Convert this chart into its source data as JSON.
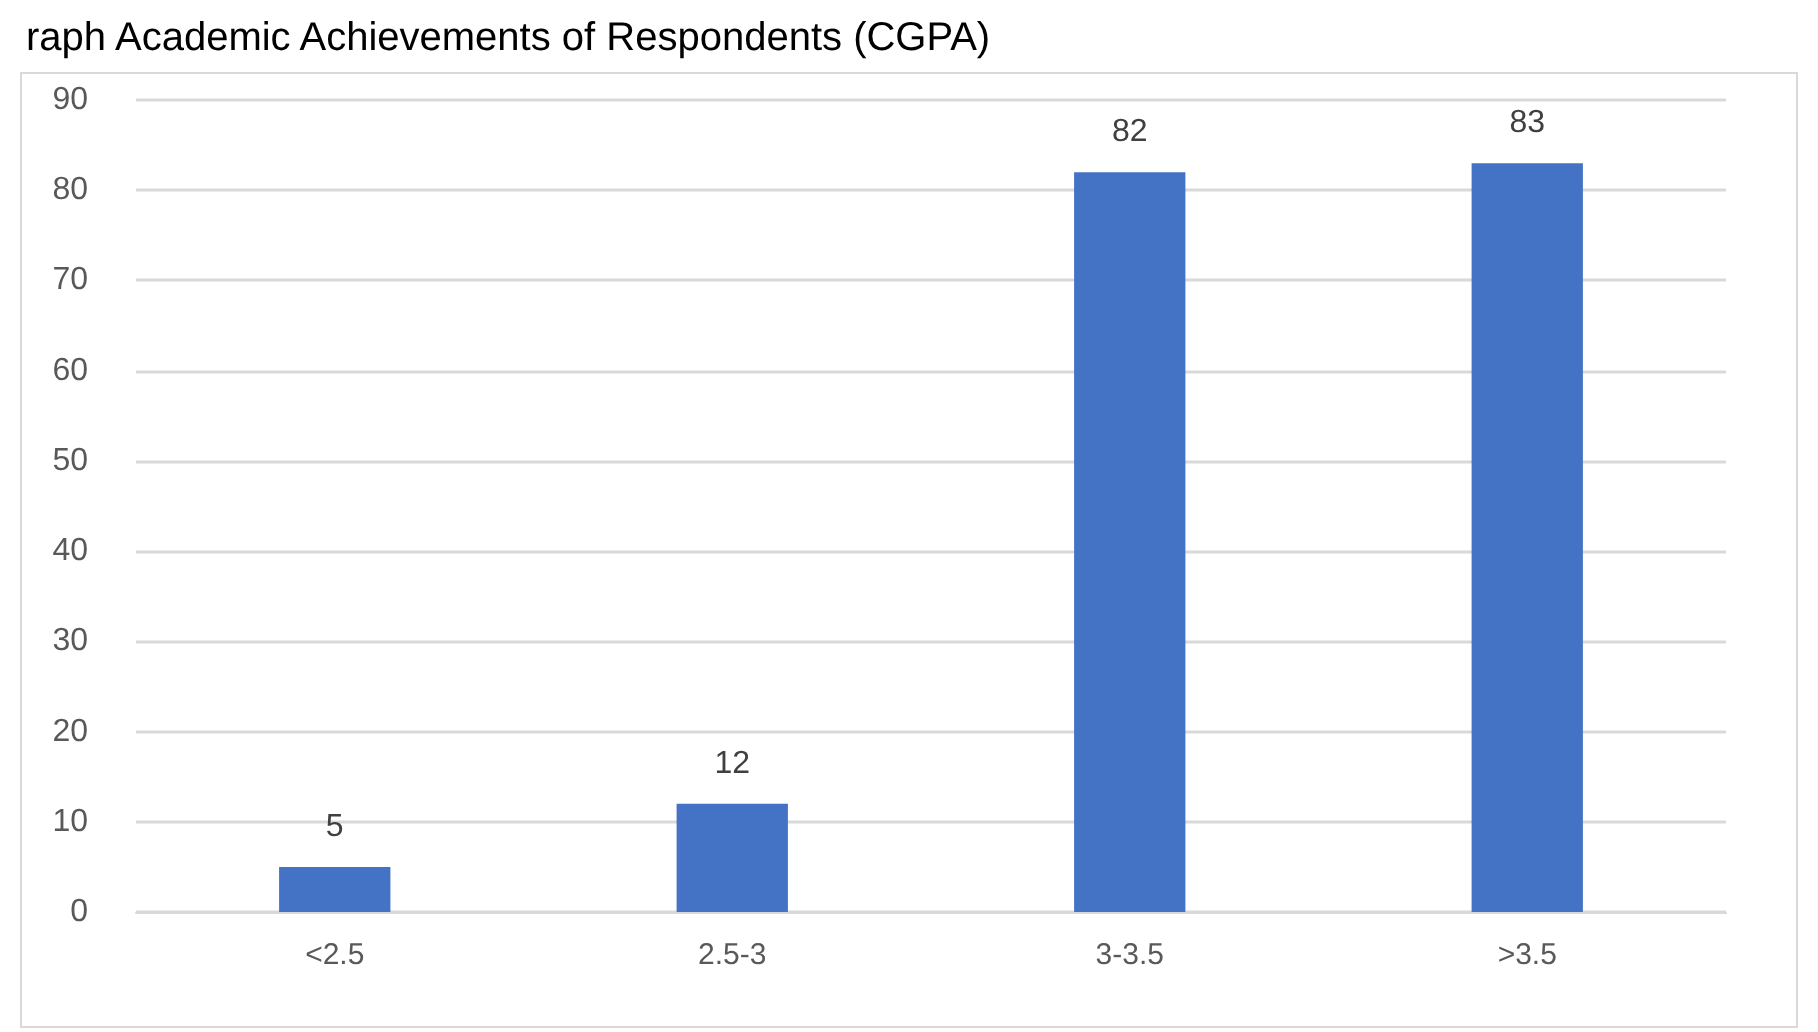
{
  "chart_data": {
    "type": "bar",
    "title": "raph Academic Achievements of Respondents (CGPA)",
    "categories": [
      "<2.5",
      "2.5-3",
      "3-3.5",
      ">3.5"
    ],
    "values": [
      5,
      12,
      82,
      83
    ],
    "color": "#4472c4",
    "ylim": [
      0,
      90
    ],
    "yticks": [
      0,
      10,
      20,
      30,
      40,
      50,
      60,
      70,
      80,
      90
    ],
    "grid": "y",
    "data_labels": true
  }
}
